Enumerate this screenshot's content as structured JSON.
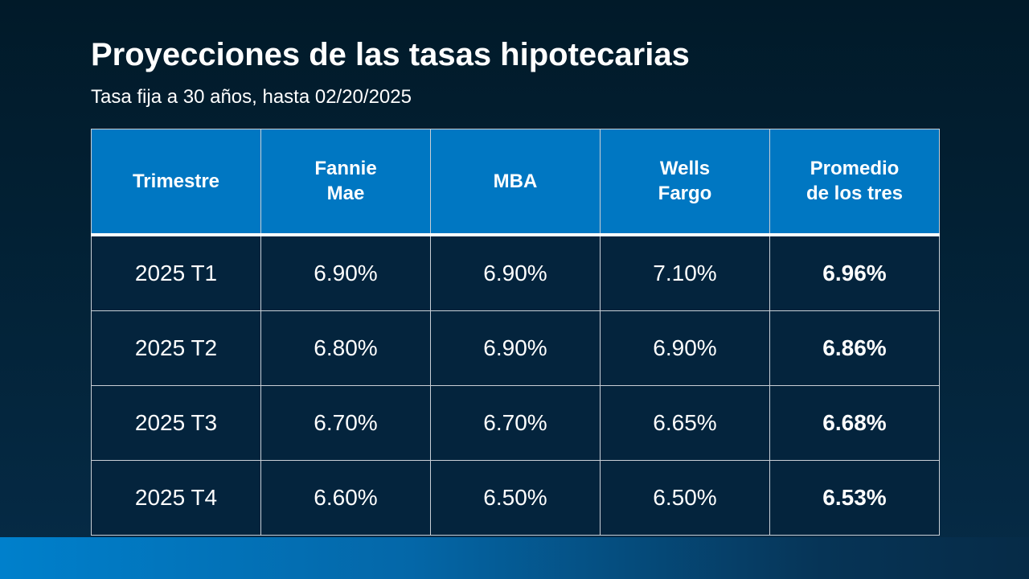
{
  "header": {
    "title": "Proyecciones de las tasas hipotecarias",
    "subtitle": "Tasa fija a 30 años, hasta 02/20/2025"
  },
  "table": {
    "columns": [
      "Trimestre",
      "Fannie Mae",
      "MBA",
      "Wells Fargo",
      "Promedio de los tres"
    ],
    "rows": [
      [
        "2025 T1",
        "6.90%",
        "6.90%",
        "7.10%",
        "6.96%"
      ],
      [
        "2025 T2",
        "6.80%",
        "6.90%",
        "6.90%",
        "6.86%"
      ],
      [
        "2025 T3",
        "6.70%",
        "6.70%",
        "6.65%",
        "6.68%"
      ],
      [
        "2025 T4",
        "6.60%",
        "6.50%",
        "6.50%",
        "6.53%"
      ]
    ]
  }
}
